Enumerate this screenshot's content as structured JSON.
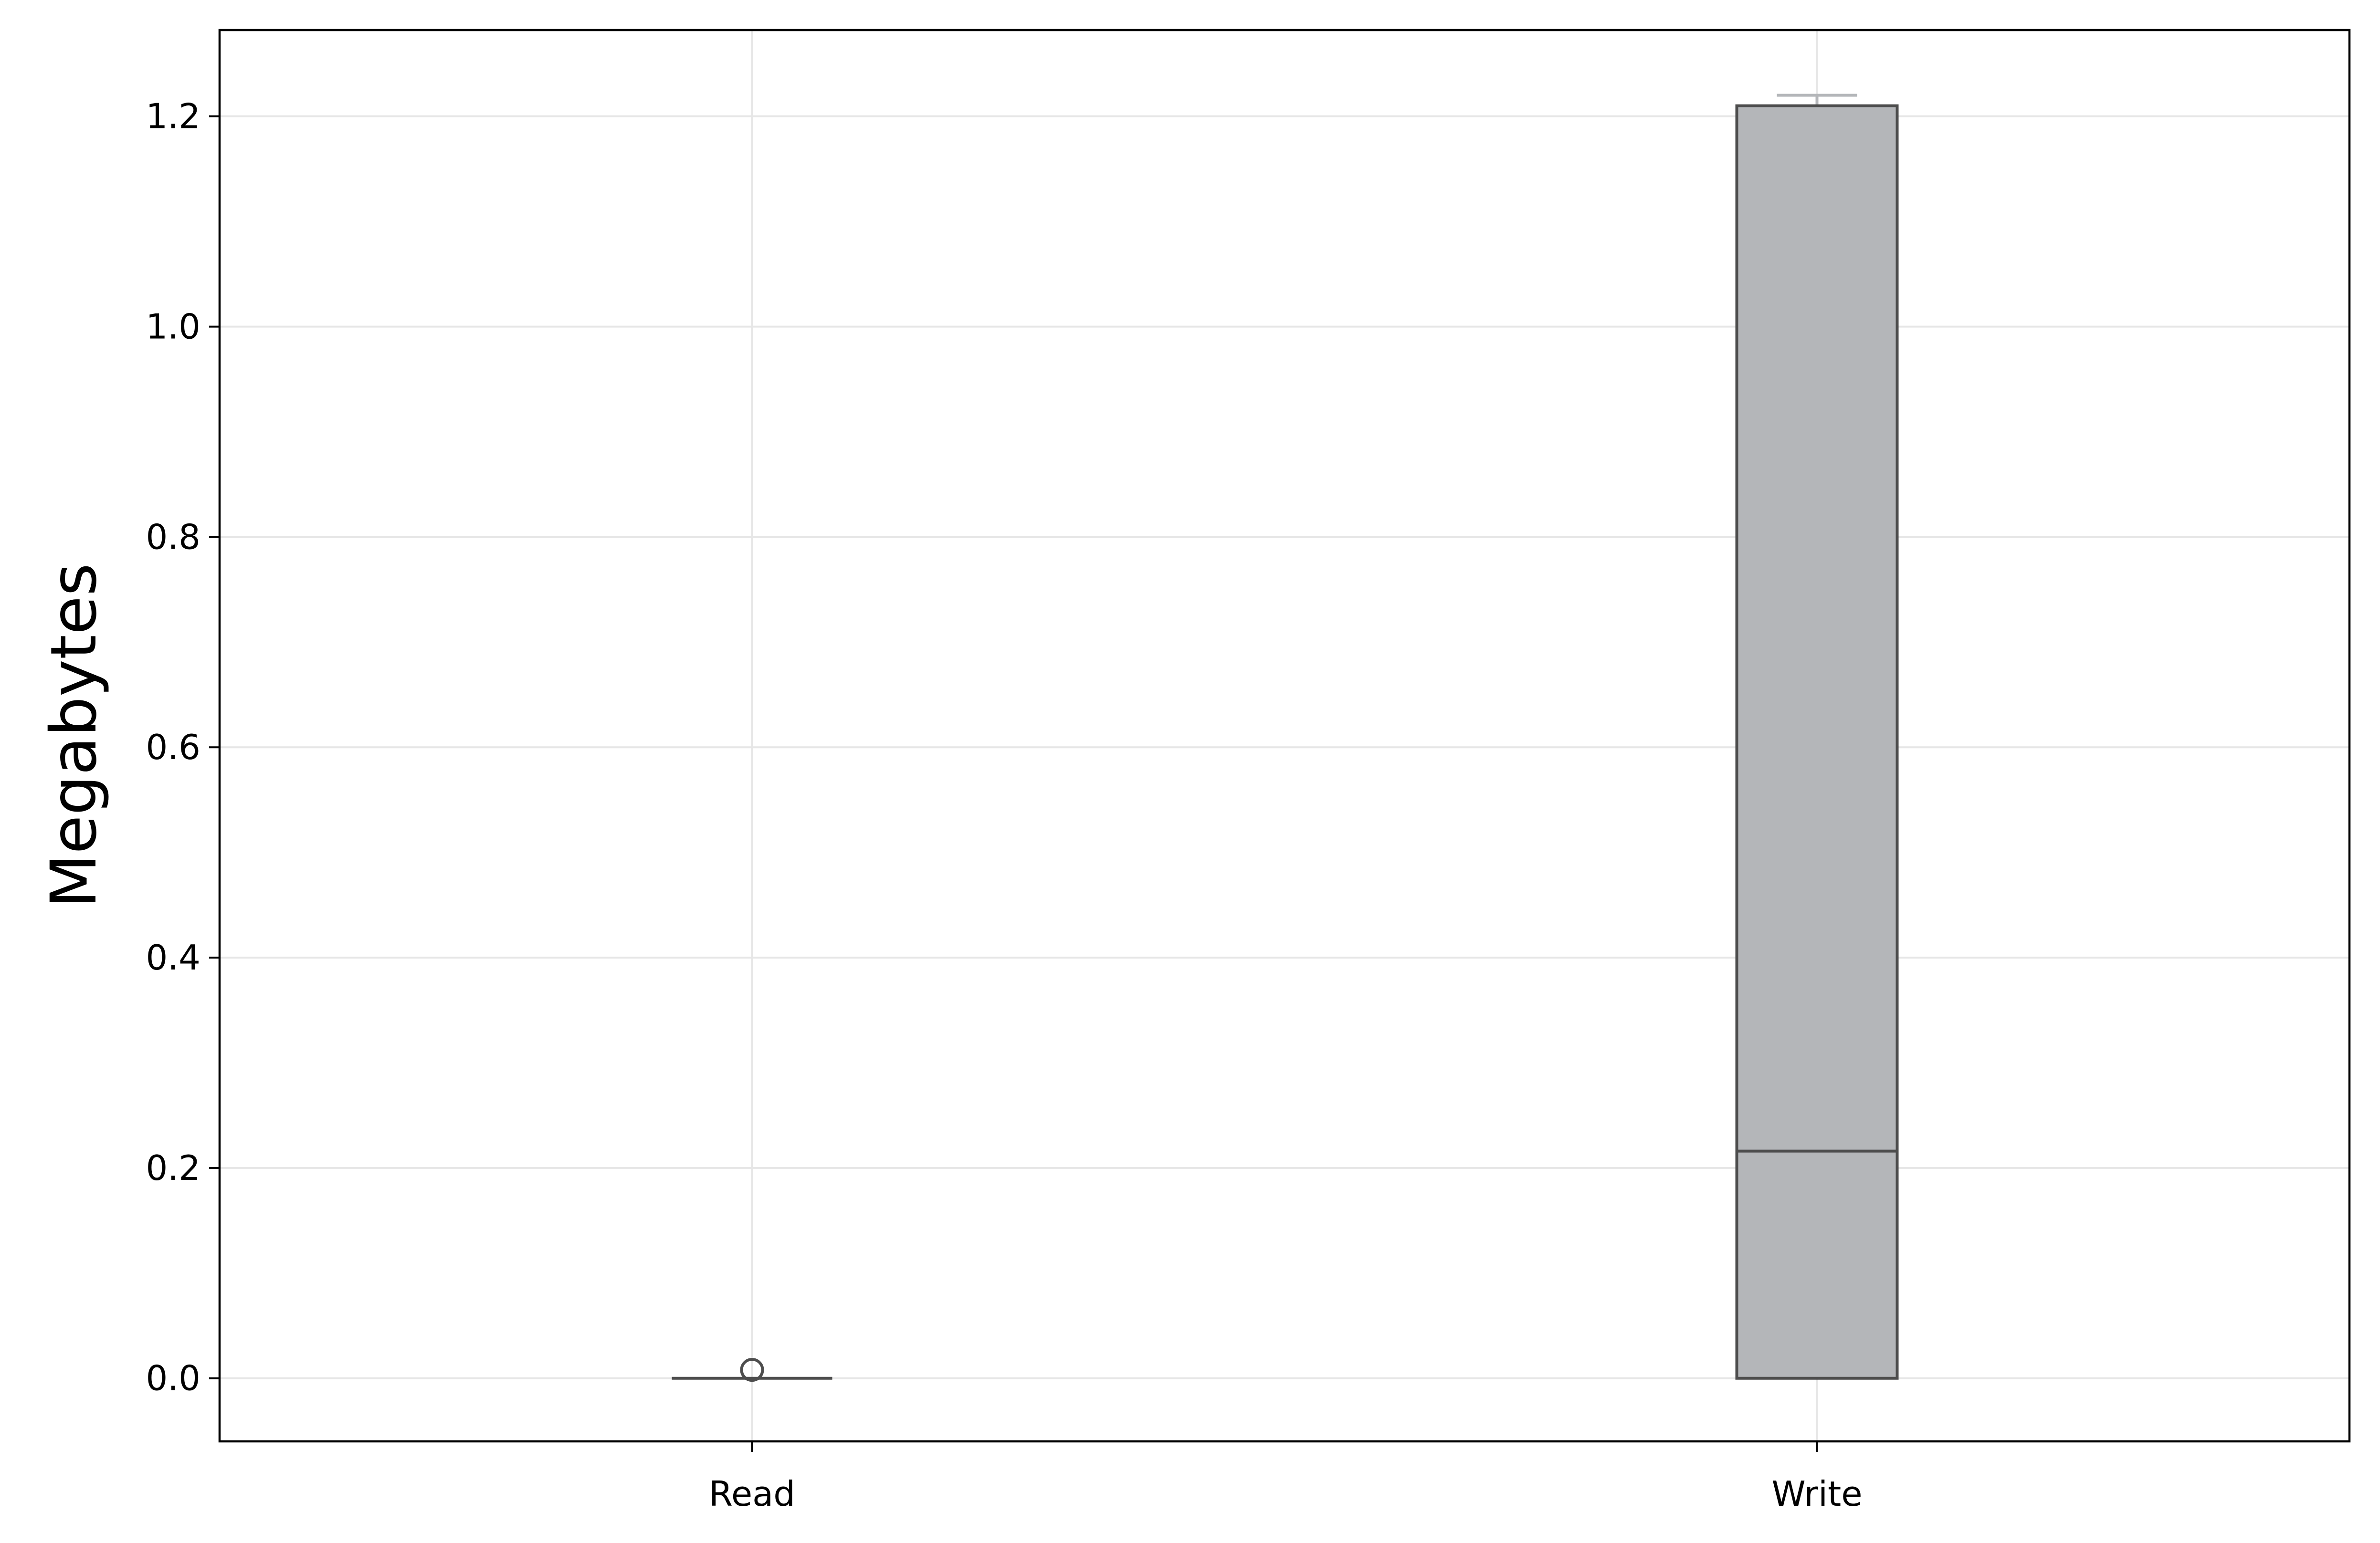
{
  "chart_data": {
    "type": "box",
    "title": "",
    "xlabel": "",
    "ylabel": "Megabytes",
    "ylim": [
      -0.06,
      1.282
    ],
    "yticks": [
      0.0,
      0.2,
      0.4,
      0.6,
      0.8,
      1.0,
      1.2
    ],
    "ytick_labels": [
      "0.0",
      "0.2",
      "0.4",
      "0.6",
      "0.8",
      "1.0",
      "1.2"
    ],
    "grid": true,
    "categories": [
      "Read",
      "Write"
    ],
    "boxes": [
      {
        "category": "Read",
        "whisker_low": 0.0,
        "q1": 0.0,
        "median": 0.0,
        "q3": 0.0,
        "whisker_high": 0.0,
        "outliers": [
          0.008
        ]
      },
      {
        "category": "Write",
        "whisker_low": 0.0,
        "q1": 0.0,
        "median": 0.216,
        "q3": 1.21,
        "whisker_high": 1.22,
        "outliers": []
      }
    ],
    "colors": {
      "box_fill": "#b4b6b9",
      "box_edge": "#4d4d4d",
      "grid": "#e6e6e6",
      "axes": "#000000",
      "upper_whisker": "#b4b6b9"
    }
  }
}
